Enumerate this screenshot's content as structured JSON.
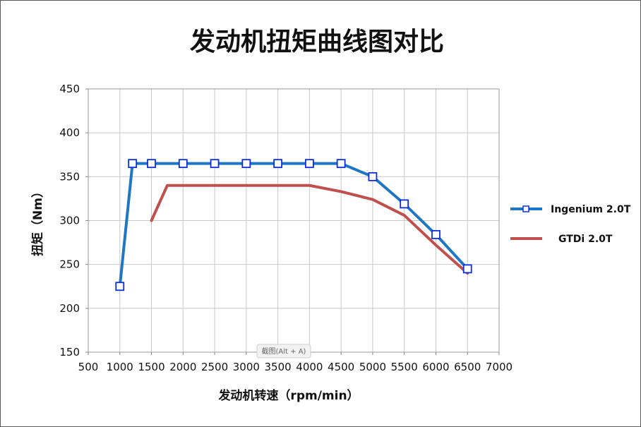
{
  "chart_data": {
    "type": "line",
    "title": "发动机扭矩曲线图对比",
    "xlabel": "发动机转速（rpm/min）",
    "ylabel": "扭矩（Nm）",
    "xlim": [
      500,
      7000
    ],
    "ylim": [
      150,
      450
    ],
    "x_ticks": [
      500,
      1000,
      1500,
      2000,
      2500,
      3000,
      3500,
      4000,
      4500,
      5000,
      5500,
      6000,
      6500,
      7000
    ],
    "y_ticks": [
      150,
      200,
      250,
      300,
      350,
      400,
      450
    ],
    "grid": true,
    "legend_position": "right",
    "series": [
      {
        "name": "Ingenium 2.0T",
        "color": "#1f77c4",
        "marker": "square",
        "points": [
          [
            1000,
            225
          ],
          [
            1200,
            365
          ],
          [
            1500,
            365
          ],
          [
            2000,
            365
          ],
          [
            2500,
            365
          ],
          [
            3000,
            365
          ],
          [
            3500,
            365
          ],
          [
            4000,
            365
          ],
          [
            4500,
            365
          ],
          [
            5000,
            350
          ],
          [
            5500,
            319
          ],
          [
            6000,
            284
          ],
          [
            6500,
            245
          ]
        ]
      },
      {
        "name": "GTDi 2.0T",
        "color": "#c0504d",
        "marker": "none",
        "points": [
          [
            1500,
            300
          ],
          [
            1750,
            340
          ],
          [
            2000,
            340
          ],
          [
            2500,
            340
          ],
          [
            3000,
            340
          ],
          [
            3500,
            340
          ],
          [
            4000,
            340
          ],
          [
            4500,
            333
          ],
          [
            5000,
            324
          ],
          [
            5500,
            306
          ],
          [
            6000,
            272
          ],
          [
            6500,
            240
          ]
        ]
      }
    ]
  },
  "watermark": "截图(Alt + A)"
}
